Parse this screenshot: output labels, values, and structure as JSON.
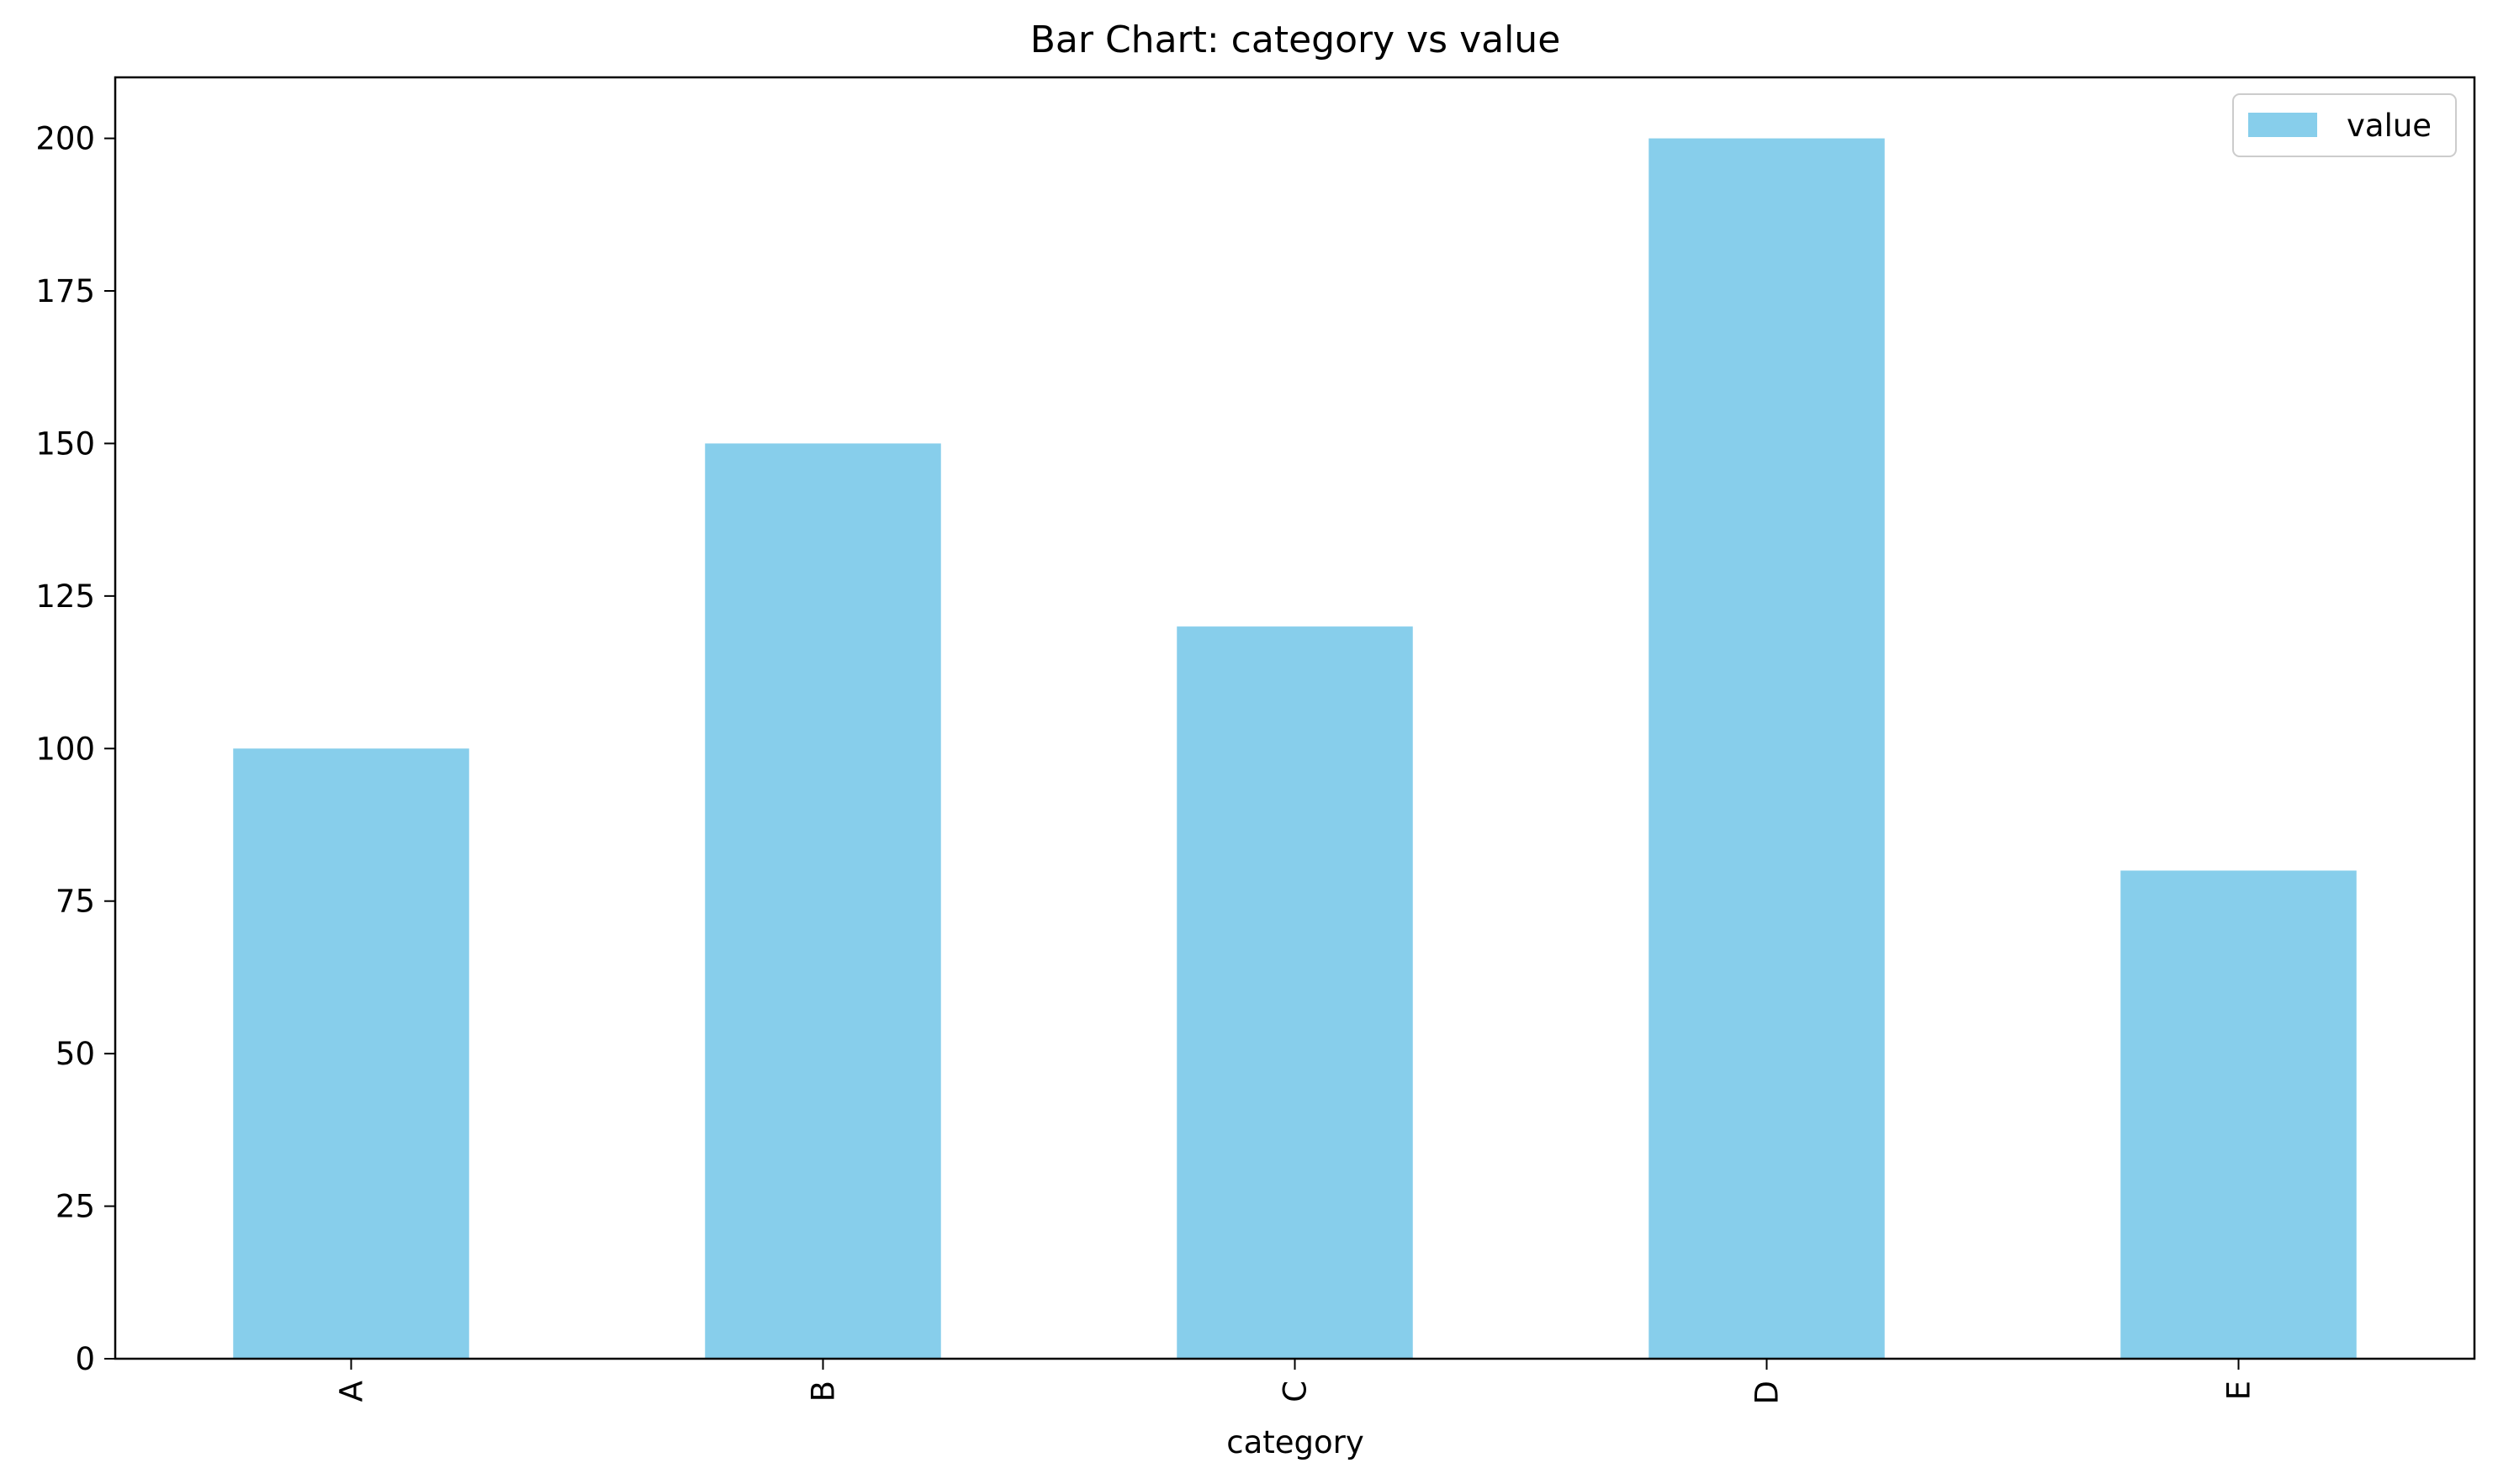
{
  "chart_data": {
    "type": "bar",
    "title": "Bar Chart: category vs value",
    "xlabel": "category",
    "ylabel": "",
    "categories": [
      "A",
      "B",
      "C",
      "D",
      "E"
    ],
    "series": [
      {
        "name": "value",
        "values": [
          100,
          150,
          120,
          200,
          80
        ],
        "color": "#87CEEB"
      }
    ],
    "ylim": [
      0,
      210
    ],
    "yticks": [
      0,
      25,
      50,
      75,
      100,
      125,
      150,
      175,
      200
    ],
    "xtick_rotation": "vertical",
    "grid": false,
    "legend": "top-right"
  }
}
